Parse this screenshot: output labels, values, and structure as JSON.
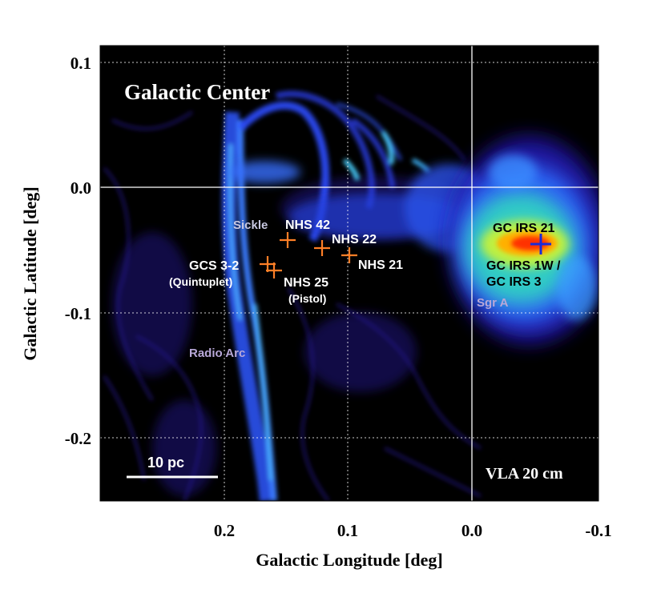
{
  "figure": {
    "title": "Galactic Center",
    "instrument_label": "VLA 20 cm",
    "scale_bar_label": "10 pc",
    "x_axis": {
      "label": "Galactic Longitude [deg]",
      "ticks": [
        "0.2",
        "0.1",
        "0.0",
        "-0.1"
      ]
    },
    "y_axis": {
      "label": "Galactic Latitude [deg]",
      "ticks": [
        "0.1",
        "0.0",
        "-0.1",
        "-0.2"
      ]
    },
    "features": [
      {
        "id": "sickle",
        "label": "Sickle",
        "color": "#c8c8e0"
      },
      {
        "id": "radio_arc",
        "label": "Radio Arc",
        "color": "#b8a8d8"
      },
      {
        "id": "sgr_a",
        "label": "Sgr A",
        "color": "#b8a8d8"
      }
    ],
    "sources": [
      {
        "id": "nhs42",
        "label": "NHS 42",
        "marker_color": "#ff7f27"
      },
      {
        "id": "nhs22",
        "label": "NHS 22",
        "marker_color": "#ff7f27"
      },
      {
        "id": "nhs21",
        "label": "NHS 21",
        "marker_color": "#ff7f27"
      },
      {
        "id": "gcs32",
        "label": "GCS 3-2",
        "sublabel": "(Quintuplet)",
        "marker_color": "#ff7f27"
      },
      {
        "id": "nhs25",
        "label": "NHS 25",
        "sublabel": "(Pistol)",
        "marker_color": "#ff7f27"
      },
      {
        "id": "gcirs21",
        "label": "GC IRS 21",
        "marker_color": "#1a2bd8"
      },
      {
        "id": "gcirs1w",
        "label": "GC IRS 1W /",
        "label2": "GC IRS 3",
        "marker_color": "#1a2bd8"
      }
    ],
    "colors": {
      "background": "#000000",
      "emission_low": "#2a1fb0",
      "emission_mid": "#3a8cff",
      "emission_high": "#39e0a0",
      "peak": "#ff3a00"
    }
  }
}
